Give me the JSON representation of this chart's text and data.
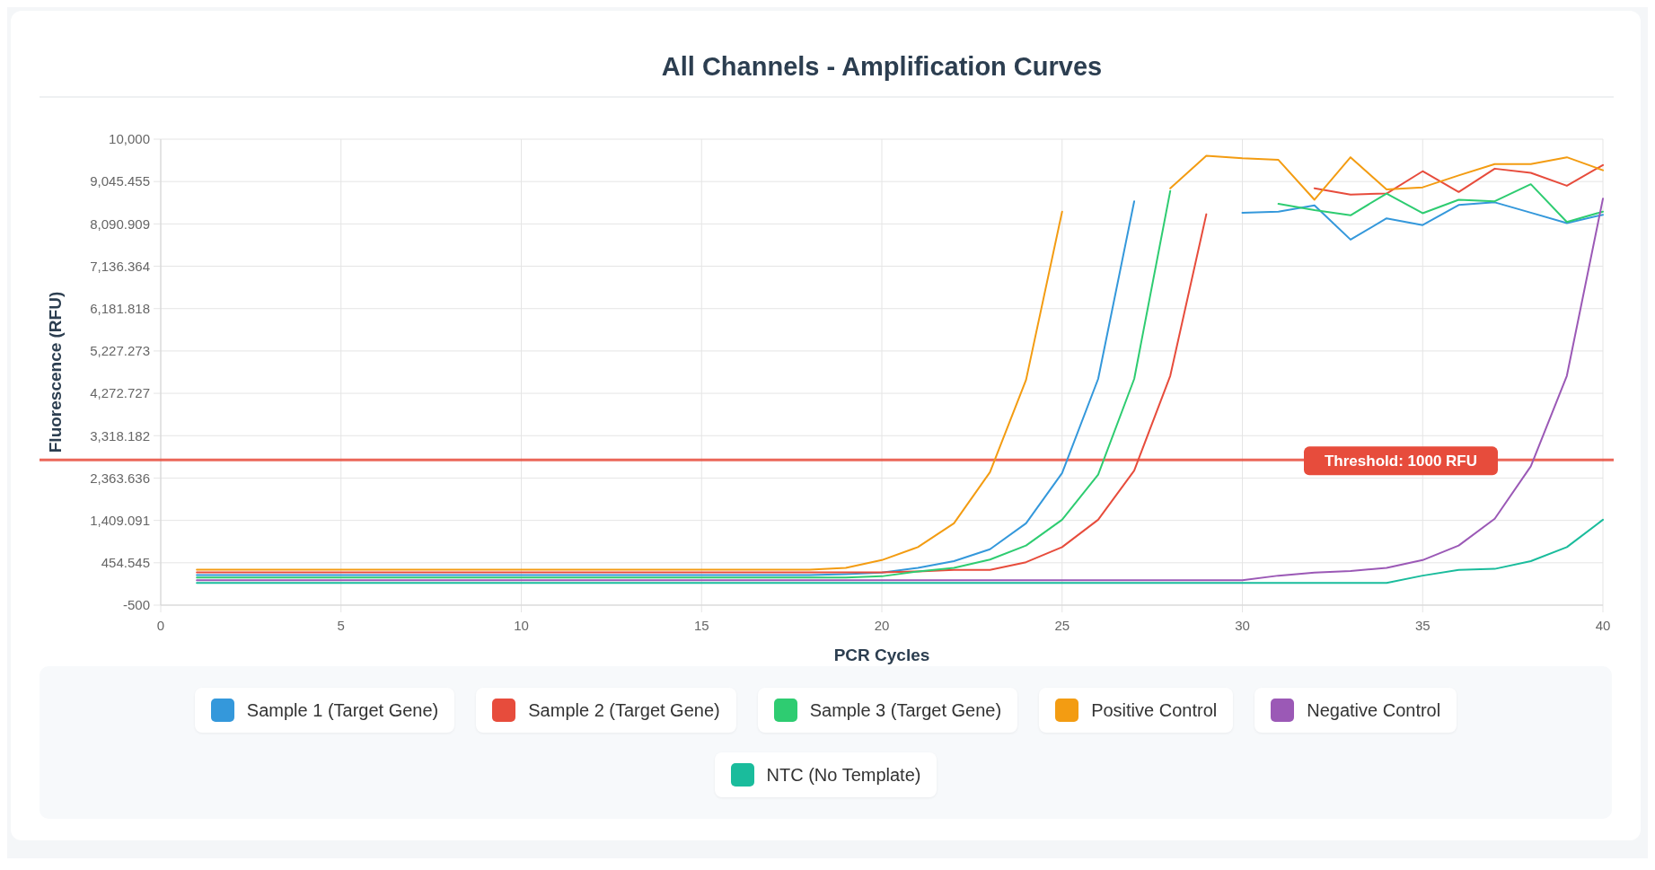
{
  "chart_data": {
    "type": "line",
    "title": "All Channels - Amplification Curves",
    "xlabel": "PCR Cycles",
    "ylabel": "Fluorescence (RFU)",
    "x": [
      1,
      2,
      3,
      4,
      5,
      6,
      7,
      8,
      9,
      10,
      11,
      12,
      13,
      14,
      15,
      16,
      17,
      18,
      19,
      20,
      21,
      22,
      23,
      24,
      25,
      26,
      27,
      28,
      29,
      30,
      31,
      32,
      33,
      34,
      35,
      36,
      37,
      38,
      39,
      40
    ],
    "xlim": [
      0,
      40
    ],
    "xticks": [
      0,
      5,
      10,
      15,
      20,
      25,
      30,
      35,
      40
    ],
    "ylim": [
      -500,
      10000
    ],
    "yticks": [
      {
        "value": -500,
        "label": "-500"
      },
      {
        "value": 454.545,
        "label": "454.545"
      },
      {
        "value": 1409.091,
        "label": "1,409.091"
      },
      {
        "value": 2363.636,
        "label": "2,363.636"
      },
      {
        "value": 3318.182,
        "label": "3,318.182"
      },
      {
        "value": 4272.727,
        "label": "4,272.727"
      },
      {
        "value": 5227.273,
        "label": "5,227.273"
      },
      {
        "value": 6181.818,
        "label": "6,181.818"
      },
      {
        "value": 7136.364,
        "label": "7,136.364"
      },
      {
        "value": 8090.909,
        "label": "8,090.909"
      },
      {
        "value": 9045.455,
        "label": "9,045.455"
      },
      {
        "value": 10000,
        "label": "10,000"
      }
    ],
    "grid": true,
    "legend": "bottom",
    "marker": "none",
    "line_style": "solid",
    "ref_lines": [
      {
        "axis": "y",
        "value": 2770,
        "color": "#e74c3c"
      }
    ],
    "annotations": [
      "Threshold: 1000 RFU"
    ],
    "series": [
      {
        "name": "Sample 1 (Target Gene)",
        "color": "#3498db",
        "values": [
          180,
          180,
          180,
          180,
          180,
          180,
          180,
          180,
          180,
          180,
          180,
          180,
          180,
          180,
          180,
          180,
          180,
          180,
          200,
          235,
          340,
          492,
          760,
          1343,
          2475,
          4598,
          8600,
          null,
          null,
          8343,
          8367,
          8507,
          7737,
          8215,
          8063,
          8518,
          8577,
          8343,
          8110,
          8297
        ]
      },
      {
        "name": "Sample 2 (Target Gene)",
        "color": "#e74c3c",
        "values": [
          240,
          240,
          240,
          240,
          240,
          240,
          240,
          240,
          240,
          240,
          240,
          240,
          240,
          240,
          240,
          240,
          240,
          240,
          240,
          240,
          260,
          293,
          293,
          468,
          807,
          1425,
          2533,
          4668,
          8308,
          null,
          null,
          8892,
          8752,
          8775,
          9277,
          8810,
          9335,
          9242,
          8950,
          9417
        ]
      },
      {
        "name": "Sample 3 (Target Gene)",
        "color": "#2ecc71",
        "values": [
          120,
          120,
          120,
          120,
          120,
          120,
          120,
          120,
          120,
          120,
          120,
          120,
          120,
          120,
          120,
          120,
          120,
          120,
          120,
          150,
          258,
          340,
          527,
          842,
          1425,
          2440,
          4598,
          8833,
          null,
          null,
          8542,
          8402,
          8285,
          8775,
          8332,
          8635,
          8600,
          8985,
          8133,
          8367
        ]
      },
      {
        "name": "Positive Control",
        "color": "#f39c12",
        "values": [
          300,
          300,
          300,
          300,
          300,
          300,
          300,
          300,
          300,
          300,
          300,
          300,
          300,
          300,
          300,
          300,
          300,
          300,
          340,
          515,
          807,
          1343,
          2498,
          4575,
          8367,
          null,
          null,
          8892,
          9627,
          9568,
          9533,
          8635,
          9592,
          8868,
          8915,
          9183,
          9440,
          9440,
          9592,
          9300
        ]
      },
      {
        "name": "Negative Control",
        "color": "#9b59b6",
        "values": [
          60,
          60,
          60,
          60,
          60,
          60,
          60,
          60,
          60,
          60,
          60,
          60,
          60,
          60,
          60,
          60,
          60,
          60,
          60,
          60,
          60,
          60,
          60,
          60,
          60,
          60,
          60,
          60,
          60,
          60,
          165,
          235,
          270,
          340,
          515,
          842,
          1448,
          2627,
          4668,
          8658
        ]
      },
      {
        "name": "NTC (No Template)",
        "color": "#1abc9c",
        "values": [
          0,
          0,
          0,
          0,
          0,
          0,
          0,
          0,
          0,
          0,
          0,
          0,
          0,
          0,
          0,
          0,
          0,
          0,
          0,
          0,
          0,
          0,
          0,
          0,
          0,
          0,
          0,
          0,
          0,
          0,
          0,
          0,
          0,
          0,
          165,
          293,
          317,
          492,
          807,
          1425
        ]
      }
    ]
  }
}
